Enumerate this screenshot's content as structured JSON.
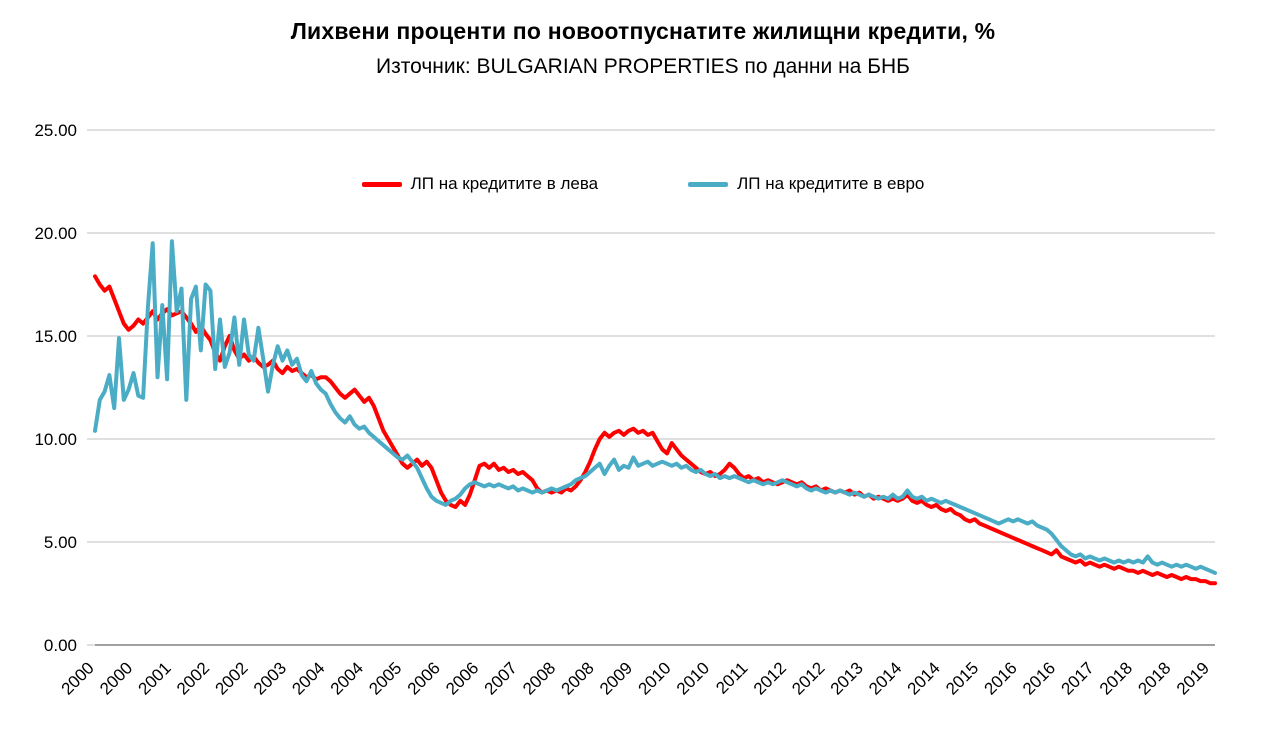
{
  "title": "Лихвени проценти по новоотпуснатите жилищни кредити, %",
  "subtitle": "Източник: BULGARIAN PROPERTIES по данни на БНБ",
  "colors": {
    "series_leva": "#FF0000",
    "series_evro": "#4BACC6",
    "gridline": "#C0C0C0",
    "axis": "#808080",
    "text": "#000000"
  },
  "chart_data": {
    "type": "line",
    "title": "Лихвени проценти по новоотпуснатите жилищни кредити, %",
    "subtitle": "Източник: BULGARIAN PROPERTIES по данни на БНБ",
    "x_unit": "month",
    "x_start": "2000-01",
    "x_end": "2019-06",
    "ylim": [
      0,
      25
    ],
    "yticks": [
      0,
      5,
      10,
      15,
      20,
      25
    ],
    "ytick_labels": [
      "0.00",
      "5.00",
      "10.00",
      "15.00",
      "20.00",
      "25.00"
    ],
    "x_tick_interval": 8,
    "x_tick_labels": [
      "2000",
      "2000",
      "2001",
      "2002",
      "2002",
      "2003",
      "2004",
      "2004",
      "2005",
      "2006",
      "2006",
      "2007",
      "2008",
      "2008",
      "2009",
      "2010",
      "2010",
      "2011",
      "2012",
      "2012",
      "2013",
      "2014",
      "2014",
      "2015",
      "2016",
      "2016",
      "2017",
      "2018",
      "2018",
      "2019"
    ],
    "grid": "horizontal",
    "legend_position": "top-inside",
    "series": [
      {
        "name": "ЛП на кредитите в лева",
        "color": "#FF0000",
        "values": [
          17.9,
          17.5,
          17.2,
          17.4,
          16.8,
          16.2,
          15.6,
          15.3,
          15.5,
          15.8,
          15.6,
          15.9,
          16.2,
          15.8,
          16.1,
          16.3,
          16.0,
          16.1,
          16.2,
          15.9,
          15.6,
          15.2,
          15.5,
          15.1,
          14.8,
          14.2,
          13.8,
          14.5,
          15.0,
          14.3,
          13.9,
          14.1,
          13.8,
          14.0,
          13.7,
          13.5,
          13.6,
          13.8,
          13.4,
          13.2,
          13.5,
          13.3,
          13.4,
          13.2,
          13.0,
          13.1,
          12.9,
          13.0,
          13.0,
          12.8,
          12.5,
          12.2,
          12.0,
          12.2,
          12.4,
          12.1,
          11.8,
          12.0,
          11.6,
          11.0,
          10.4,
          10.0,
          9.6,
          9.2,
          8.8,
          8.6,
          8.8,
          9.0,
          8.7,
          8.9,
          8.6,
          8.0,
          7.4,
          7.0,
          6.8,
          6.7,
          7.0,
          6.8,
          7.3,
          8.0,
          8.7,
          8.8,
          8.6,
          8.8,
          8.5,
          8.6,
          8.4,
          8.5,
          8.3,
          8.4,
          8.2,
          8.0,
          7.6,
          7.4,
          7.5,
          7.4,
          7.5,
          7.4,
          7.6,
          7.5,
          7.7,
          8.0,
          8.4,
          8.9,
          9.5,
          10.0,
          10.3,
          10.1,
          10.3,
          10.4,
          10.2,
          10.4,
          10.5,
          10.3,
          10.4,
          10.2,
          10.3,
          9.9,
          9.5,
          9.3,
          9.8,
          9.5,
          9.2,
          9.0,
          8.8,
          8.6,
          8.4,
          8.3,
          8.4,
          8.2,
          8.3,
          8.5,
          8.8,
          8.6,
          8.3,
          8.1,
          8.2,
          8.0,
          8.1,
          7.9,
          8.0,
          7.9,
          7.8,
          7.9,
          8.0,
          7.9,
          7.8,
          7.9,
          7.7,
          7.6,
          7.7,
          7.5,
          7.6,
          7.5,
          7.4,
          7.5,
          7.4,
          7.5,
          7.3,
          7.4,
          7.2,
          7.3,
          7.1,
          7.2,
          7.1,
          7.0,
          7.1,
          7.0,
          7.1,
          7.3,
          7.0,
          6.9,
          7.0,
          6.8,
          6.7,
          6.8,
          6.6,
          6.5,
          6.6,
          6.4,
          6.3,
          6.1,
          6.0,
          6.1,
          5.9,
          5.8,
          5.7,
          5.6,
          5.5,
          5.4,
          5.3,
          5.2,
          5.1,
          5.0,
          4.9,
          4.8,
          4.7,
          4.6,
          4.5,
          4.4,
          4.6,
          4.3,
          4.2,
          4.1,
          4.0,
          4.1,
          3.9,
          4.0,
          3.9,
          3.8,
          3.9,
          3.8,
          3.7,
          3.8,
          3.7,
          3.6,
          3.6,
          3.5,
          3.6,
          3.5,
          3.4,
          3.5,
          3.4,
          3.3,
          3.4,
          3.3,
          3.2,
          3.3,
          3.2,
          3.2,
          3.1,
          3.1,
          3.0,
          3.0
        ]
      },
      {
        "name": "ЛП на кредитите в евро",
        "color": "#4BACC6",
        "values": [
          10.4,
          11.9,
          12.3,
          13.1,
          11.5,
          14.9,
          11.9,
          12.4,
          13.2,
          12.1,
          12.0,
          16.4,
          19.5,
          13.0,
          16.5,
          12.9,
          19.6,
          16.2,
          17.3,
          11.9,
          16.8,
          17.4,
          14.3,
          17.5,
          17.2,
          13.4,
          15.8,
          13.5,
          14.2,
          15.9,
          13.6,
          15.8,
          14.1,
          13.8,
          15.4,
          13.9,
          12.3,
          13.6,
          14.5,
          13.8,
          14.3,
          13.6,
          13.9,
          13.1,
          12.8,
          13.3,
          12.7,
          12.4,
          12.2,
          11.7,
          11.3,
          11.0,
          10.8,
          11.1,
          10.7,
          10.5,
          10.6,
          10.3,
          10.1,
          9.9,
          9.7,
          9.5,
          9.3,
          9.1,
          9.0,
          9.2,
          8.9,
          8.6,
          8.1,
          7.6,
          7.2,
          7.0,
          6.9,
          6.8,
          7.0,
          7.1,
          7.3,
          7.6,
          7.8,
          7.9,
          7.8,
          7.7,
          7.8,
          7.7,
          7.8,
          7.7,
          7.6,
          7.7,
          7.5,
          7.6,
          7.5,
          7.4,
          7.5,
          7.4,
          7.5,
          7.6,
          7.5,
          7.6,
          7.7,
          7.8,
          8.0,
          8.1,
          8.2,
          8.4,
          8.6,
          8.8,
          8.3,
          8.7,
          9.0,
          8.5,
          8.7,
          8.6,
          9.1,
          8.7,
          8.8,
          8.9,
          8.7,
          8.8,
          8.9,
          8.8,
          8.7,
          8.8,
          8.6,
          8.7,
          8.5,
          8.4,
          8.5,
          8.3,
          8.2,
          8.3,
          8.1,
          8.2,
          8.1,
          8.2,
          8.1,
          8.0,
          7.9,
          8.0,
          7.9,
          7.8,
          7.9,
          7.8,
          7.9,
          8.0,
          7.9,
          7.8,
          7.7,
          7.8,
          7.6,
          7.5,
          7.6,
          7.5,
          7.4,
          7.5,
          7.4,
          7.5,
          7.4,
          7.3,
          7.4,
          7.3,
          7.2,
          7.3,
          7.2,
          7.1,
          7.2,
          7.1,
          7.3,
          7.1,
          7.2,
          7.5,
          7.2,
          7.1,
          7.2,
          7.0,
          7.1,
          7.0,
          6.9,
          7.0,
          6.9,
          6.8,
          6.7,
          6.6,
          6.5,
          6.4,
          6.3,
          6.2,
          6.1,
          6.0,
          5.9,
          6.0,
          6.1,
          6.0,
          6.1,
          6.0,
          5.9,
          6.0,
          5.8,
          5.7,
          5.6,
          5.4,
          5.1,
          4.8,
          4.6,
          4.4,
          4.3,
          4.4,
          4.2,
          4.3,
          4.2,
          4.1,
          4.2,
          4.1,
          4.0,
          4.1,
          4.0,
          4.1,
          4.0,
          4.1,
          4.0,
          4.3,
          4.0,
          3.9,
          4.0,
          3.9,
          3.8,
          3.9,
          3.8,
          3.9,
          3.8,
          3.7,
          3.8,
          3.7,
          3.6,
          3.5
        ]
      }
    ]
  }
}
